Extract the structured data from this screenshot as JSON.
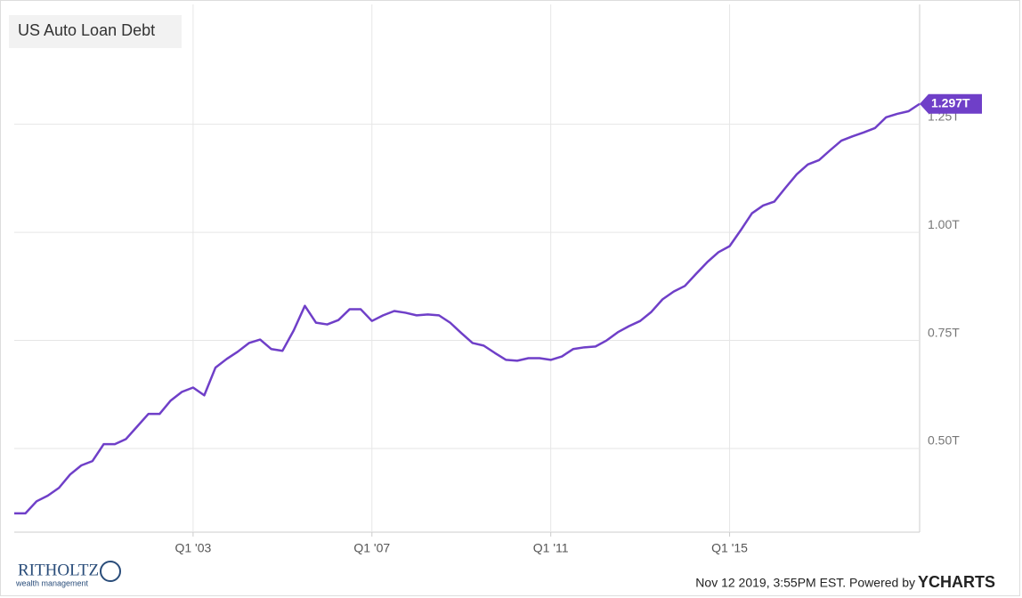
{
  "chart_data": {
    "type": "line",
    "title": "US Auto Loan Debt",
    "categories": [
      null,
      null,
      null,
      null,
      null,
      null,
      null,
      null,
      null,
      null,
      null,
      null,
      null,
      null,
      null,
      null,
      "Q1 '03",
      null,
      null,
      null,
      null,
      null,
      null,
      null,
      null,
      null,
      null,
      null,
      null,
      null,
      null,
      null,
      "Q1 '07",
      null,
      null,
      null,
      null,
      null,
      null,
      null,
      null,
      null,
      null,
      null,
      null,
      null,
      null,
      null,
      "Q1 '11",
      null,
      null,
      null,
      null,
      null,
      null,
      null,
      null,
      null,
      null,
      null,
      null,
      null,
      null,
      null,
      "Q1 '15",
      null,
      null,
      null,
      null,
      null,
      null,
      null,
      null,
      null,
      null,
      null,
      null,
      null,
      null,
      null,
      null,
      null
    ],
    "series": [
      {
        "color": "#6f3fc8",
        "values": [
          0.35,
          0.35,
          0.378,
          0.391,
          0.409,
          0.44,
          0.461,
          0.471,
          0.51,
          0.51,
          0.522,
          0.551,
          0.58,
          0.58,
          0.611,
          0.631,
          0.641,
          0.623,
          0.687,
          0.707,
          0.724,
          0.744,
          0.752,
          0.73,
          0.726,
          0.773,
          0.83,
          0.791,
          0.787,
          0.797,
          0.822,
          0.822,
          0.795,
          0.808,
          0.818,
          0.814,
          0.808,
          0.81,
          0.808,
          0.791,
          0.767,
          0.744,
          0.738,
          0.721,
          0.705,
          0.703,
          0.709,
          0.709,
          0.705,
          0.713,
          0.73,
          0.734,
          0.736,
          0.75,
          0.769,
          0.783,
          0.795,
          0.816,
          0.845,
          0.863,
          0.876,
          0.904,
          0.931,
          0.954,
          0.968,
          1.005,
          1.044,
          1.062,
          1.071,
          1.103,
          1.134,
          1.157,
          1.167,
          1.19,
          1.212,
          1.222,
          1.231,
          1.241,
          1.266,
          1.274,
          1.28,
          1.297
        ]
      }
    ],
    "last_value_label": "1.297T",
    "ylim": [
      0.3066,
      1.527
    ],
    "yticks": [
      {
        "value": 0.5,
        "label": "0.50T"
      },
      {
        "value": 0.75,
        "label": "0.75T"
      },
      {
        "value": 1.0,
        "label": "1.00T"
      },
      {
        "value": 1.25,
        "label": "1.25T"
      }
    ],
    "grid": true,
    "source": "Nov 12 2019, 3:55PM EST. Powered by"
  },
  "logo": {
    "name": "RITHOLTZ",
    "tagline": "wealth management"
  },
  "powered_by": "YCHARTS"
}
